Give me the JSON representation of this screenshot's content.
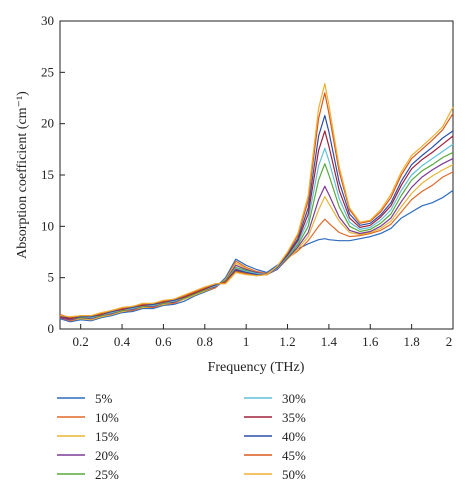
{
  "chart_data": {
    "type": "line",
    "xlabel": "Frequency (THz)",
    "ylabel": "Absorption coefficient (cm⁻¹)",
    "xlim": [
      0.1,
      2.0
    ],
    "ylim": [
      0,
      30
    ],
    "xticks": [
      0.2,
      0.4,
      0.6,
      0.8,
      1.0,
      1.2,
      1.4,
      1.6,
      1.8,
      2.0
    ],
    "xtick_labels": [
      "0.2",
      "0.4",
      "0.6",
      "0.8",
      "1",
      "1.2",
      "1.4",
      "1.6",
      "1.8",
      "2"
    ],
    "yticks": [
      0,
      5,
      10,
      15,
      20,
      25,
      30
    ],
    "ytick_labels": [
      "0",
      "5",
      "10",
      "15",
      "20",
      "25",
      "30"
    ],
    "grid": false,
    "legend_position": "bottom, two columns",
    "x": [
      0.1,
      0.15,
      0.2,
      0.25,
      0.3,
      0.35,
      0.4,
      0.45,
      0.5,
      0.55,
      0.6,
      0.65,
      0.7,
      0.75,
      0.8,
      0.85,
      0.9,
      0.95,
      1.0,
      1.05,
      1.1,
      1.15,
      1.2,
      1.25,
      1.3,
      1.35,
      1.38,
      1.4,
      1.45,
      1.5,
      1.55,
      1.6,
      1.65,
      1.7,
      1.75,
      1.8,
      1.85,
      1.9,
      1.95,
      2.0
    ],
    "series": [
      {
        "name": "5%",
        "color": "#2e6bbf",
        "values": [
          1.0,
          0.7,
          0.9,
          0.8,
          1.1,
          1.3,
          1.6,
          1.7,
          2.0,
          2.0,
          2.3,
          2.4,
          2.7,
          3.2,
          3.6,
          4.0,
          5.0,
          6.8,
          6.2,
          5.8,
          5.5,
          6.2,
          7.0,
          7.8,
          8.3,
          8.7,
          8.8,
          8.7,
          8.6,
          8.6,
          8.8,
          9.0,
          9.3,
          9.8,
          10.8,
          11.4,
          12.0,
          12.3,
          12.8,
          13.5
        ]
      },
      {
        "name": "10%",
        "color": "#e06a2a",
        "values": [
          1.1,
          0.8,
          1.0,
          0.9,
          1.2,
          1.4,
          1.7,
          1.8,
          2.1,
          2.1,
          2.4,
          2.5,
          2.9,
          3.3,
          3.7,
          4.0,
          4.8,
          6.6,
          6.0,
          5.6,
          5.4,
          6.0,
          6.9,
          7.6,
          8.6,
          10.0,
          10.7,
          10.3,
          9.4,
          9.0,
          9.1,
          9.3,
          9.6,
          10.2,
          11.4,
          12.6,
          13.4,
          14.0,
          14.8,
          15.3
        ]
      },
      {
        "name": "15%",
        "color": "#e6b635",
        "values": [
          1.2,
          0.9,
          1.0,
          0.9,
          1.2,
          1.4,
          1.7,
          1.9,
          2.1,
          2.2,
          2.4,
          2.6,
          2.9,
          3.3,
          3.7,
          4.1,
          4.8,
          6.4,
          5.9,
          5.5,
          5.3,
          5.8,
          6.8,
          7.8,
          9.0,
          11.6,
          12.9,
          12.2,
          10.5,
          9.4,
          9.2,
          9.4,
          9.8,
          10.5,
          11.9,
          13.2,
          14.2,
          14.9,
          15.5,
          16.0
        ]
      },
      {
        "name": "20%",
        "color": "#7b3a96",
        "values": [
          1.1,
          0.9,
          1.1,
          1.0,
          1.3,
          1.5,
          1.8,
          1.9,
          2.2,
          2.2,
          2.5,
          2.6,
          3.0,
          3.4,
          3.8,
          4.1,
          4.7,
          6.2,
          5.8,
          5.5,
          5.3,
          5.8,
          6.9,
          8.0,
          9.4,
          12.6,
          13.9,
          13.1,
          10.9,
          9.6,
          9.3,
          9.5,
          10.0,
          10.8,
          12.4,
          13.8,
          14.8,
          15.5,
          16.1,
          16.6
        ]
      },
      {
        "name": "25%",
        "color": "#5aa83c",
        "values": [
          1.2,
          1.0,
          1.1,
          1.1,
          1.3,
          1.6,
          1.8,
          2.0,
          2.2,
          2.3,
          2.5,
          2.7,
          3.0,
          3.4,
          3.8,
          4.2,
          4.7,
          6.0,
          5.7,
          5.4,
          5.3,
          5.9,
          7.0,
          8.2,
          10.0,
          14.5,
          16.1,
          15.0,
          11.9,
          10.0,
          9.5,
          9.7,
          10.3,
          11.2,
          13.0,
          14.5,
          15.4,
          16.0,
          16.7,
          17.2
        ]
      },
      {
        "name": "30%",
        "color": "#5fc0d8",
        "values": [
          1.3,
          1.0,
          1.2,
          1.1,
          1.4,
          1.6,
          1.9,
          2.0,
          2.3,
          2.3,
          2.6,
          2.7,
          3.1,
          3.5,
          3.9,
          4.2,
          4.6,
          5.9,
          5.6,
          5.4,
          5.3,
          5.9,
          7.1,
          8.4,
          10.6,
          15.9,
          17.6,
          16.4,
          12.7,
          10.4,
          9.7,
          9.9,
          10.6,
          11.6,
          13.5,
          15.0,
          15.9,
          16.6,
          17.3,
          18.0
        ]
      },
      {
        "name": "35%",
        "color": "#a0203a",
        "values": [
          1.2,
          1.0,
          1.2,
          1.2,
          1.4,
          1.7,
          1.9,
          2.1,
          2.3,
          2.4,
          2.6,
          2.8,
          3.1,
          3.5,
          3.9,
          4.3,
          4.6,
          5.8,
          5.5,
          5.3,
          5.3,
          6.0,
          7.2,
          8.6,
          11.2,
          17.4,
          19.3,
          17.8,
          13.5,
          10.8,
          9.9,
          10.1,
          10.9,
          12.0,
          14.0,
          15.6,
          16.5,
          17.2,
          18.0,
          18.8
        ]
      },
      {
        "name": "40%",
        "color": "#2a4fa8",
        "values": [
          1.3,
          1.1,
          1.2,
          1.2,
          1.5,
          1.7,
          2.0,
          2.1,
          2.4,
          2.4,
          2.7,
          2.8,
          3.2,
          3.6,
          4.0,
          4.3,
          4.5,
          5.7,
          5.5,
          5.3,
          5.3,
          6.0,
          7.3,
          8.8,
          11.8,
          18.8,
          20.8,
          19.2,
          14.3,
          11.2,
          10.1,
          10.3,
          11.1,
          12.3,
          14.4,
          16.0,
          16.9,
          17.7,
          18.6,
          19.3
        ]
      },
      {
        "name": "45%",
        "color": "#d9581f",
        "values": [
          1.4,
          1.1,
          1.3,
          1.3,
          1.5,
          1.8,
          2.0,
          2.2,
          2.4,
          2.5,
          2.7,
          2.9,
          3.2,
          3.6,
          4.0,
          4.4,
          4.5,
          5.6,
          5.4,
          5.2,
          5.3,
          6.1,
          7.4,
          9.1,
          12.5,
          20.5,
          23.0,
          21.0,
          15.3,
          11.6,
          10.3,
          10.5,
          11.4,
          12.8,
          15.0,
          16.6,
          17.5,
          18.4,
          19.4,
          21.0
        ]
      },
      {
        "name": "50%",
        "color": "#f0b030",
        "values": [
          1.3,
          1.2,
          1.3,
          1.3,
          1.6,
          1.8,
          2.1,
          2.2,
          2.5,
          2.5,
          2.8,
          2.9,
          3.3,
          3.7,
          4.1,
          4.4,
          4.4,
          5.5,
          5.3,
          5.2,
          5.3,
          6.1,
          7.5,
          9.3,
          13.0,
          21.5,
          23.9,
          21.8,
          15.8,
          11.8,
          10.4,
          10.6,
          11.6,
          13.1,
          15.3,
          16.9,
          17.8,
          18.7,
          19.7,
          21.6
        ]
      }
    ]
  }
}
